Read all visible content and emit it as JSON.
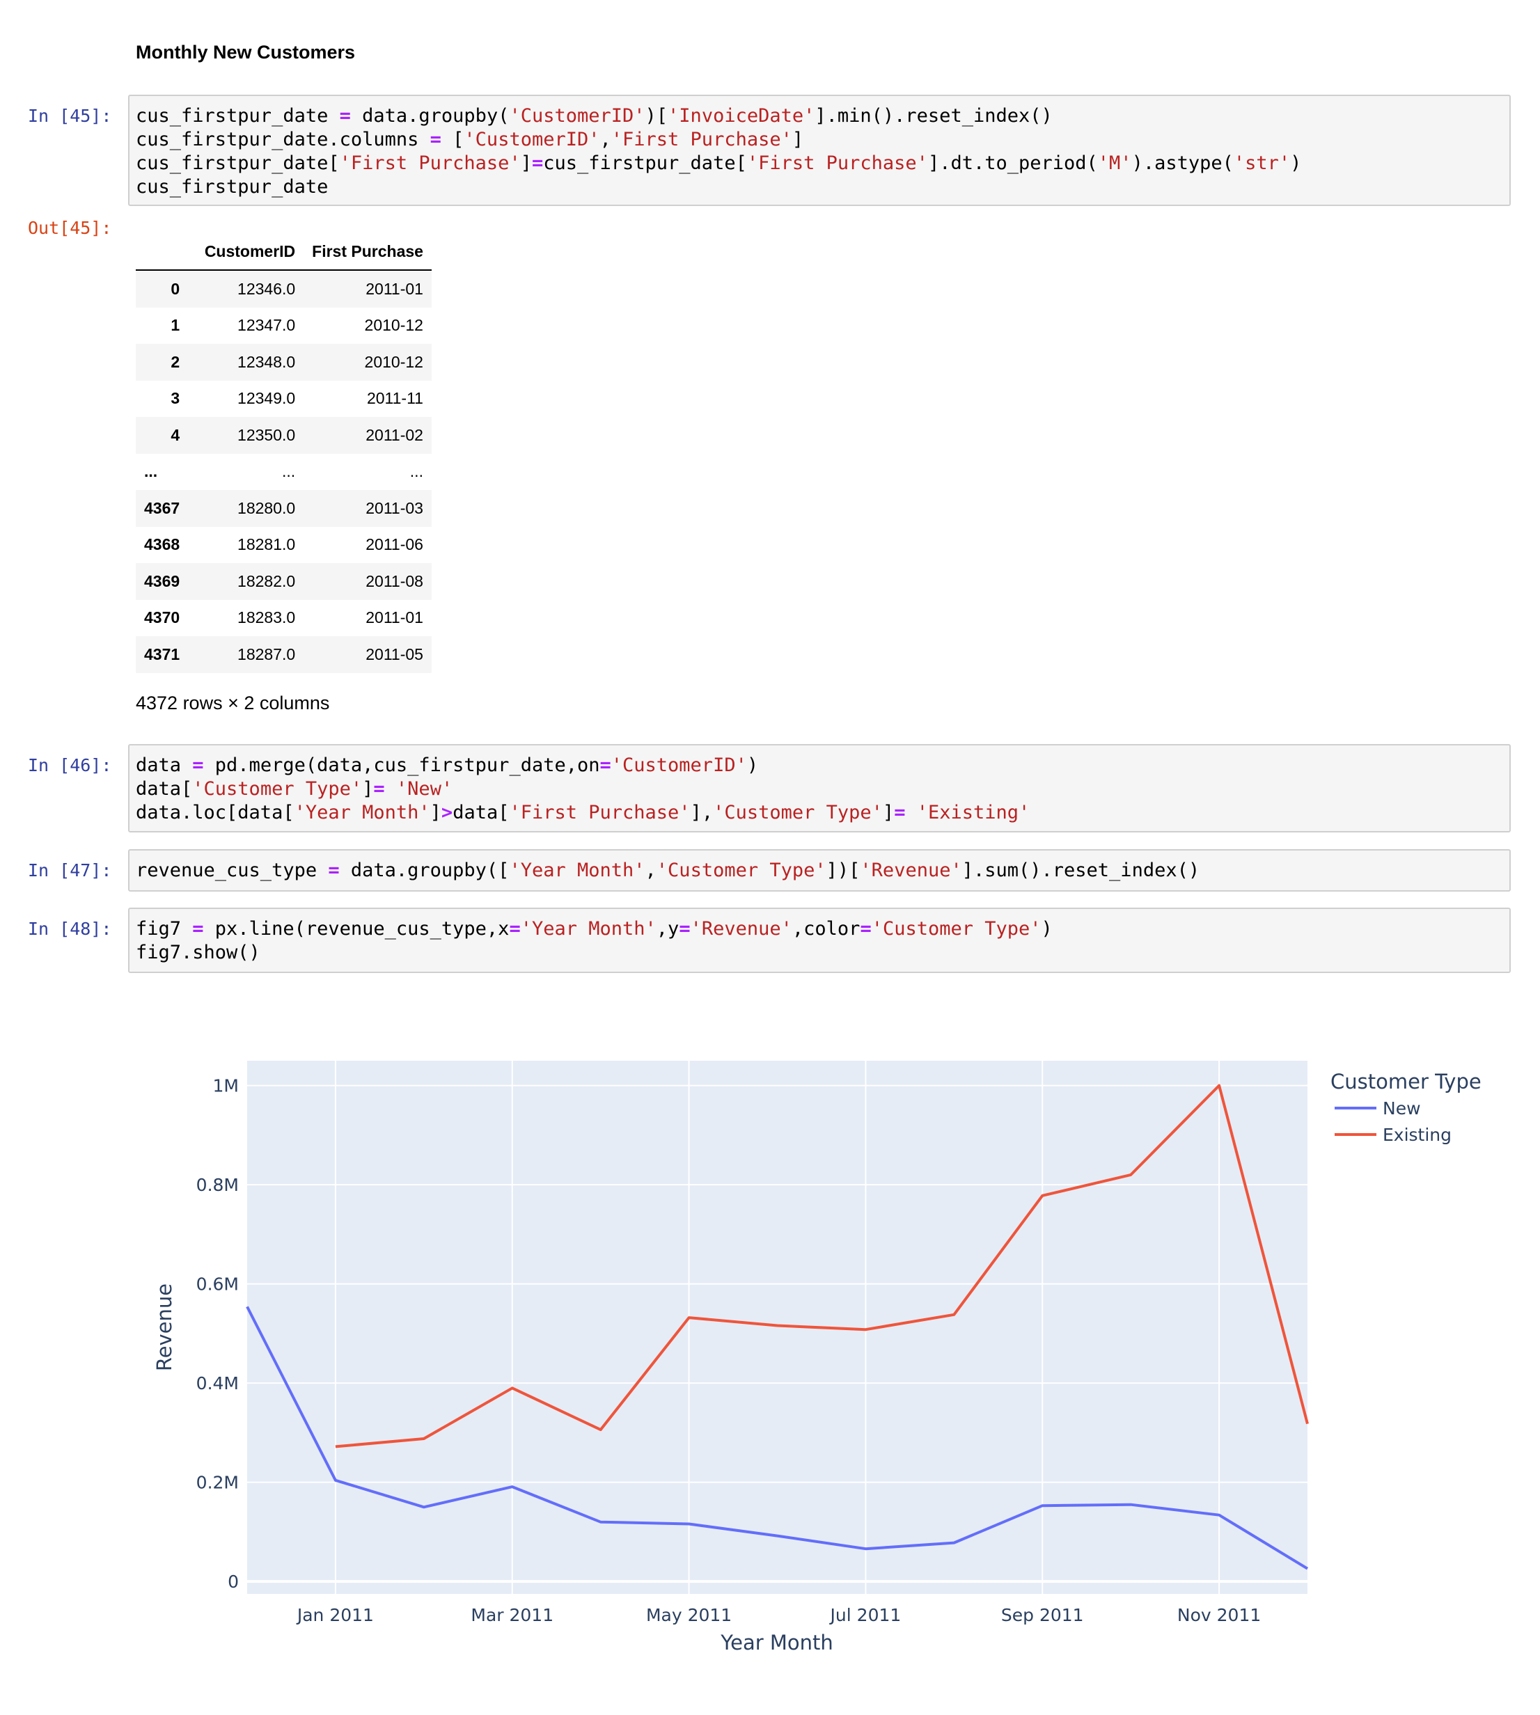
{
  "heading": "Monthly New Customers",
  "cells": [
    {
      "prompt": "In [45]:"
    },
    {
      "prompt": "In [46]:"
    },
    {
      "prompt": "In [47]:"
    },
    {
      "prompt": "In [48]:"
    }
  ],
  "out_prompt": "Out[45]:",
  "table": {
    "columns": [
      "CustomerID",
      "First Purchase"
    ],
    "rows": [
      [
        "0",
        "12346.0",
        "2011-01"
      ],
      [
        "1",
        "12347.0",
        "2010-12"
      ],
      [
        "2",
        "12348.0",
        "2010-12"
      ],
      [
        "3",
        "12349.0",
        "2011-11"
      ],
      [
        "4",
        "12350.0",
        "2011-02"
      ],
      [
        "...",
        "...",
        "..."
      ],
      [
        "4367",
        "18280.0",
        "2011-03"
      ],
      [
        "4368",
        "18281.0",
        "2011-06"
      ],
      [
        "4369",
        "18282.0",
        "2011-08"
      ],
      [
        "4370",
        "18283.0",
        "2011-01"
      ],
      [
        "4371",
        "18287.0",
        "2011-05"
      ]
    ],
    "caption": "4372 rows × 2 columns"
  },
  "chart_data": {
    "type": "line",
    "xlabel": "Year Month",
    "ylabel": "Revenue",
    "legend_title": "Customer Type",
    "legend_position": "top-right",
    "grid": true,
    "x_ticks": [
      "Jan 2011",
      "Mar 2011",
      "May 2011",
      "Jul 2011",
      "Sep 2011",
      "Nov 2011"
    ],
    "y_ticks": [
      "0",
      "0.2M",
      "0.4M",
      "0.6M",
      "0.8M",
      "1M"
    ],
    "ylim": [
      -25000,
      1050000
    ],
    "x": [
      "2010-12",
      "2011-01",
      "2011-02",
      "2011-03",
      "2011-04",
      "2011-05",
      "2011-06",
      "2011-07",
      "2011-08",
      "2011-09",
      "2011-10",
      "2011-11",
      "2011-12"
    ],
    "series": [
      {
        "name": "New",
        "color": "#636efa",
        "values": [
          554000,
          204000,
          150000,
          191000,
          120000,
          116000,
          92000,
          66000,
          78000,
          153000,
          155000,
          134000,
          26000
        ]
      },
      {
        "name": "Existing",
        "color": "#ef553b",
        "values": [
          null,
          272000,
          288000,
          390000,
          306000,
          532000,
          516000,
          508000,
          538000,
          778000,
          820000,
          1000000,
          318000
        ]
      }
    ]
  }
}
